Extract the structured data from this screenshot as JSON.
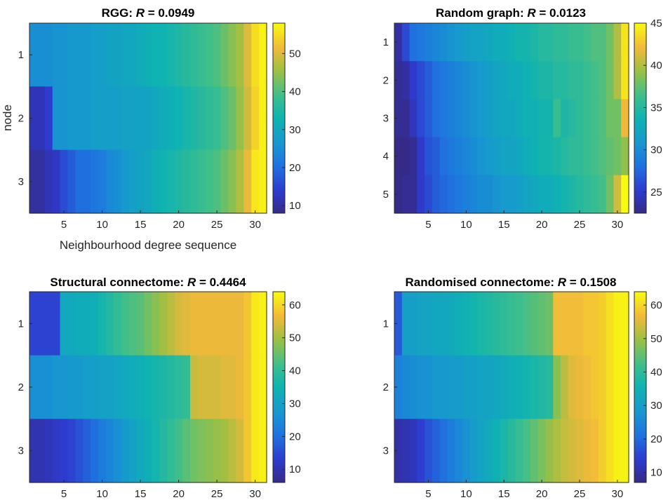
{
  "chart_data": [
    {
      "type": "heatmap",
      "title_prefix": "RGG: ",
      "title_var": "R",
      "title_value": " = 0.0949",
      "xlabel": "Neighbourhood degree sequence",
      "ylabel": "node",
      "rows": [
        1,
        2,
        3
      ],
      "x_ticks": [
        5,
        10,
        15,
        20,
        25,
        30
      ],
      "xlim": [
        0.5,
        31.5
      ],
      "colorbar_range": [
        8,
        58
      ],
      "colorbar_ticks": [
        10,
        20,
        30,
        40,
        50
      ],
      "values": [
        [
          25,
          25,
          25,
          26,
          26,
          27,
          27,
          27,
          28,
          28,
          29,
          29,
          30,
          30,
          31,
          32,
          33,
          33,
          34,
          35,
          36,
          37,
          38,
          39,
          40,
          42,
          44,
          46,
          50,
          55,
          57
        ],
        [
          12,
          12,
          14,
          26,
          26,
          27,
          27,
          27,
          28,
          28,
          28,
          28,
          29,
          29,
          29,
          29,
          30,
          31,
          32,
          33,
          34,
          35,
          36,
          37,
          38,
          40,
          42,
          45,
          49,
          54,
          57
        ],
        [
          10,
          10,
          12,
          13,
          16,
          18,
          20,
          20,
          21,
          22,
          24,
          25,
          27,
          28,
          29,
          30,
          32,
          33,
          34,
          35,
          36,
          37,
          38,
          39,
          40,
          42,
          44,
          47,
          51,
          56,
          57
        ]
      ]
    },
    {
      "type": "heatmap",
      "title_prefix": "Random graph: ",
      "title_var": "R",
      "title_value": " = 0.0123",
      "xlabel": "",
      "ylabel": "",
      "rows": [
        1,
        2,
        3,
        4,
        5
      ],
      "x_ticks": [
        5,
        10,
        15,
        20,
        25,
        30
      ],
      "xlim": [
        0.5,
        31.5
      ],
      "colorbar_range": [
        22.5,
        45
      ],
      "colorbar_ticks": [
        25,
        30,
        35,
        40,
        45
      ],
      "values": [
        [
          23.5,
          26,
          28,
          28.5,
          29,
          29.5,
          30,
          30.5,
          31,
          31.5,
          32,
          32,
          32.5,
          33,
          33,
          33.5,
          34,
          34,
          34.5,
          35,
          35,
          35.5,
          35.5,
          36,
          36,
          36.5,
          37,
          37,
          38,
          40,
          44
        ],
        [
          23,
          23.5,
          25,
          26,
          27,
          28,
          28.5,
          29,
          29.5,
          30,
          30.5,
          31,
          31.5,
          32,
          32.5,
          33,
          33,
          33.5,
          34,
          34.5,
          34.5,
          35,
          35,
          35.5,
          35.5,
          36,
          36.5,
          37,
          38,
          40,
          44
        ],
        [
          23,
          23,
          24.5,
          26,
          27,
          28,
          28.5,
          29,
          29.5,
          30,
          30.5,
          31,
          31.5,
          32,
          32.5,
          32.5,
          33,
          33.5,
          33.5,
          34,
          34,
          36,
          34.5,
          35,
          35.5,
          36,
          36.5,
          37,
          38,
          38,
          42
        ],
        [
          22.5,
          22.5,
          23,
          25,
          26.5,
          27,
          28,
          28.5,
          29,
          29.5,
          30,
          30.5,
          31,
          31.5,
          32,
          32,
          32.5,
          33,
          33.5,
          34,
          34,
          34.5,
          35,
          35.5,
          35.5,
          36,
          36.5,
          37,
          37.5,
          38,
          39
        ],
        [
          22.5,
          23,
          23,
          25,
          26,
          27,
          27.5,
          28,
          28.5,
          29,
          29.5,
          30,
          30,
          30.5,
          31,
          31,
          31.5,
          32,
          32.5,
          33,
          33,
          33.5,
          34,
          34.5,
          35,
          35.5,
          36,
          36.5,
          38,
          41,
          45
        ]
      ]
    },
    {
      "type": "heatmap",
      "title_prefix": "Structural connectome: ",
      "title_var": "R",
      "title_value": " = 0.4464",
      "xlabel": "",
      "ylabel": "",
      "rows": [
        1,
        2,
        3
      ],
      "x_ticks": [
        5,
        10,
        15,
        20,
        25,
        30
      ],
      "xlim": [
        0.5,
        31.5
      ],
      "colorbar_range": [
        6,
        64
      ],
      "colorbar_ticks": [
        10,
        20,
        30,
        40,
        50,
        60
      ],
      "values": [
        [
          14,
          14,
          14,
          14,
          32,
          32,
          33,
          33,
          34,
          36,
          38,
          40,
          42,
          43,
          44,
          46,
          48,
          50,
          52,
          54,
          55,
          56,
          56,
          56,
          56,
          56,
          56,
          56,
          58,
          62,
          63
        ],
        [
          26,
          26,
          26,
          27,
          27,
          28,
          28,
          29,
          29,
          30,
          30,
          31,
          32,
          33,
          34,
          35,
          36,
          37,
          38,
          39,
          40,
          53,
          54,
          54,
          54,
          55,
          55,
          56,
          58,
          62,
          63
        ],
        [
          10,
          10,
          11,
          12,
          13,
          14,
          16,
          18,
          20,
          22,
          24,
          26,
          28,
          30,
          32,
          34,
          36,
          38,
          40,
          42,
          44,
          46,
          47,
          48,
          49,
          50,
          52,
          54,
          58,
          62,
          63
        ]
      ]
    },
    {
      "type": "heatmap",
      "title_prefix": "Randomised connectome: ",
      "title_var": "R",
      "title_value": " = 0.1508",
      "xlabel": "",
      "ylabel": "",
      "rows": [
        1,
        2,
        3
      ],
      "x_ticks": [
        5,
        10,
        15,
        20,
        25,
        30
      ],
      "xlim": [
        0.5,
        31.5
      ],
      "colorbar_range": [
        7,
        64
      ],
      "colorbar_ticks": [
        10,
        20,
        30,
        40,
        50,
        60
      ],
      "values": [
        [
          18,
          30,
          30,
          31,
          31,
          32,
          32,
          33,
          34,
          35,
          36,
          37,
          38,
          39,
          40,
          41,
          42,
          43,
          44,
          45,
          46,
          57,
          57,
          57,
          57,
          58,
          58,
          59,
          61,
          63,
          63
        ],
        [
          24,
          25,
          26,
          27,
          27,
          28,
          28,
          29,
          29,
          30,
          30,
          31,
          31,
          32,
          33,
          34,
          35,
          36,
          37,
          38,
          39,
          48,
          52,
          55,
          56,
          57,
          58,
          59,
          61,
          63,
          63
        ],
        [
          10,
          11,
          12,
          14,
          17,
          19,
          21,
          23,
          25,
          27,
          29,
          31,
          33,
          35,
          37,
          39,
          41,
          43,
          45,
          47,
          49,
          51,
          53,
          54,
          55,
          56,
          57,
          59,
          61,
          63,
          63
        ]
      ]
    }
  ]
}
